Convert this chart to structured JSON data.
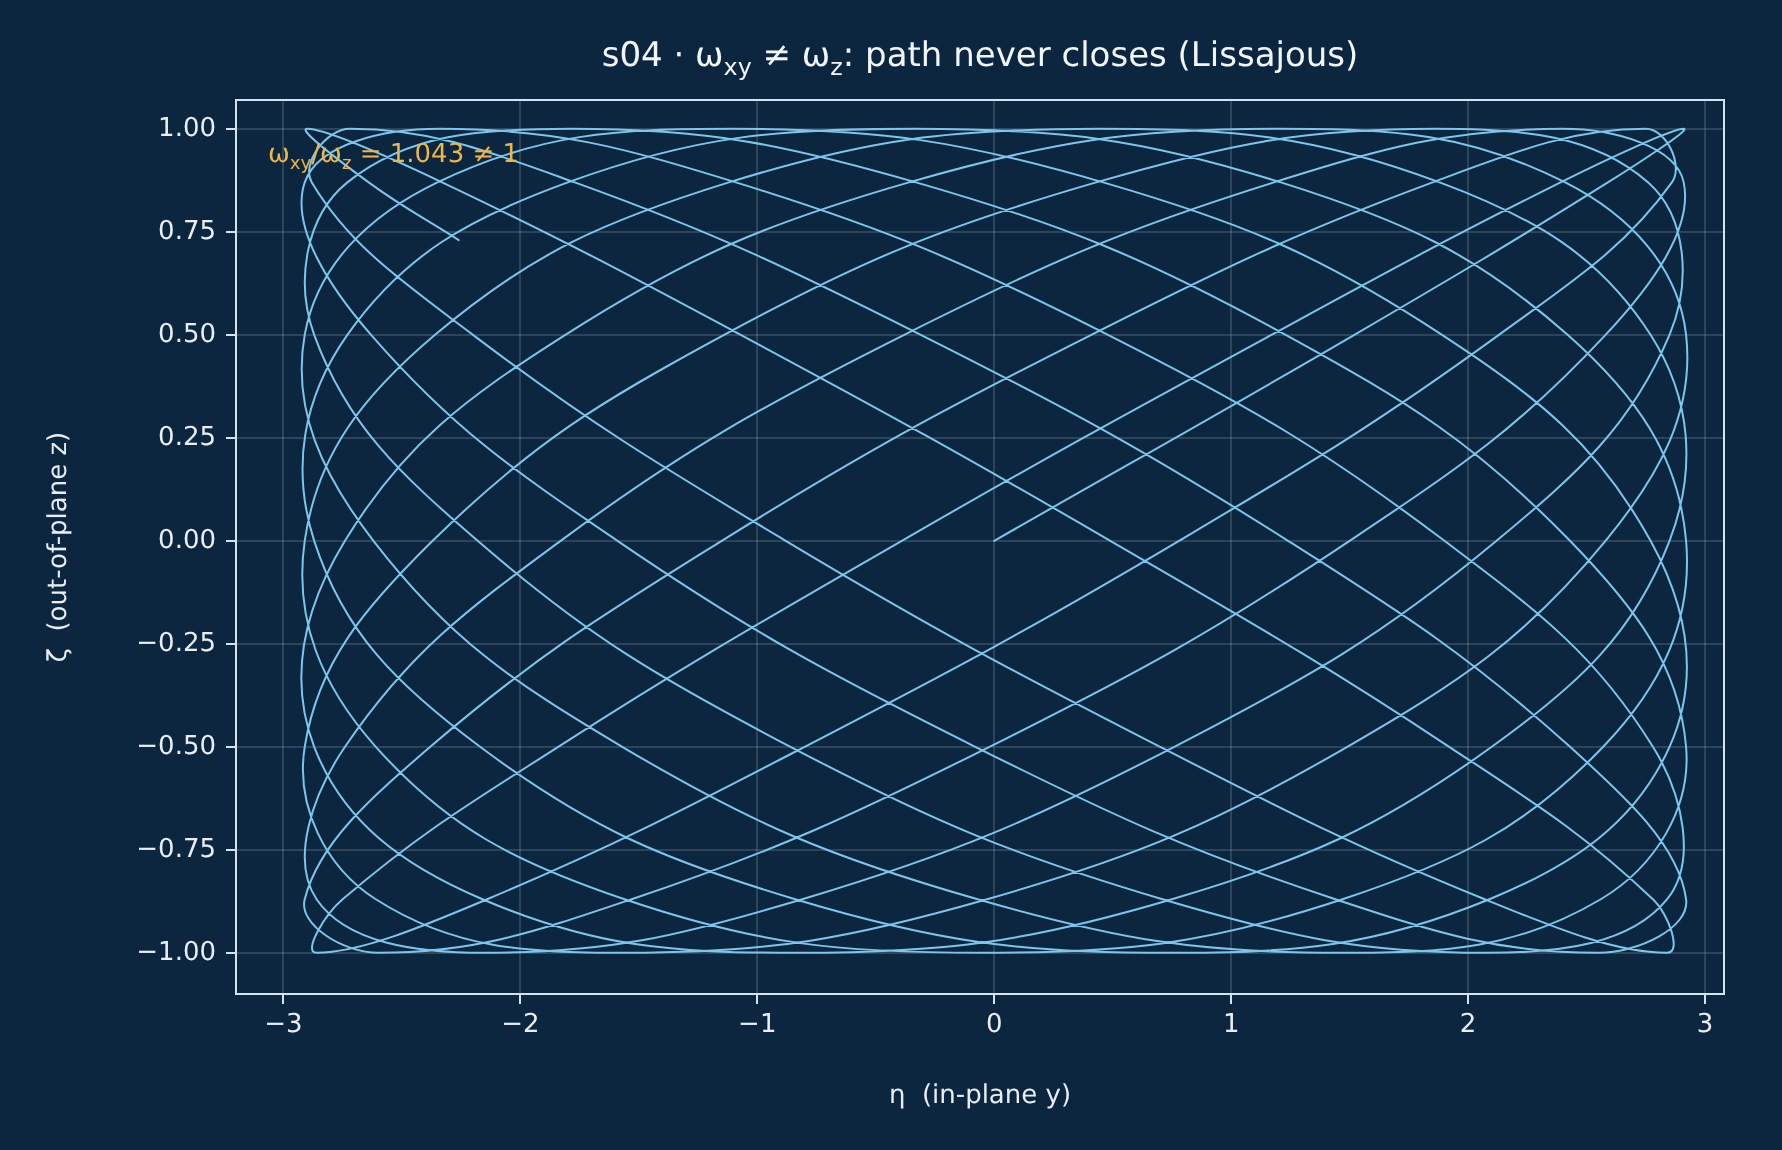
{
  "chart_data": {
    "type": "line",
    "title": "s04 · ω$_{xy}$ ≠ ω$_{z}$: path never closes (Lissajous)",
    "xlabel": "η  (in-plane y)",
    "ylabel": "ζ  (out-of-plane z)",
    "annotations": [
      "ω$_{xy}$/ω$_{z}$ = 1.043 ≠ 1"
    ],
    "x": [
      0,
      1.52,
      2.59,
      2.91,
      2.39,
      1.17,
      -0.39,
      -1.84,
      -2.75,
      -2.86,
      -2.14,
      -0.8,
      0.78,
      2.13,
      2.86,
      2.75,
      1.85,
      0.41,
      -1.15,
      -2.38,
      -2.91,
      -2.6,
      -1.53,
      -0.02,
      1.5,
      2.58,
      2.91,
      2.4,
      1.18,
      -0.38,
      -1.83,
      -2.74,
      -2.86,
      -2.15,
      -0.81,
      0.76,
      2.12,
      2.85,
      2.76,
      1.86,
      0.43,
      -1.14,
      -2.37,
      -2.91,
      -2.61,
      -1.55,
      -0.03,
      1.49,
      2.58,
      2.92,
      2.41,
      1.2,
      -0.36,
      -1.81,
      -2.74,
      -2.87,
      -2.16,
      -0.83,
      0.75,
      2.1,
      2.85,
      2.77,
      1.88,
      0.44,
      -1.12,
      -2.36,
      -2.91,
      -2.61,
      -1.56,
      -0.05,
      1.47,
      2.57,
      2.92,
      2.42,
      1.21,
      -0.34,
      -1.8,
      -2.73,
      -2.87,
      -2.17,
      -0.84,
      0.73,
      2.09,
      2.85,
      2.77,
      1.89,
      0.46,
      -1.1,
      -2.35,
      -2.91,
      -2.62,
      -1.57,
      -0.07,
      1.46,
      2.56,
      2.92,
      2.43,
      1.23,
      -0.33,
      -1.79,
      -2.73,
      -2.87,
      -2.18,
      -0.86,
      0.71,
      2.08,
      2.84,
      2.78,
      1.9,
      0.48,
      -1.09,
      -2.34,
      -2.91,
      -2.63,
      -1.59,
      -0.08,
      1.44,
      2.55,
      2.92,
      2.43,
      1.24,
      -0.31,
      -1.77,
      -2.72,
      -2.88,
      -2.2,
      -0.88,
      0.7,
      2.07,
      2.84,
      2.78,
      1.92,
      0.49,
      -1.07,
      -2.33,
      -2.9,
      -2.64,
      -2.26
    ],
    "values": [
      0,
      0.5,
      0.87,
      1,
      0.87,
      0.5,
      0,
      -0.5,
      -0.87,
      -1,
      -0.87,
      -0.5,
      0,
      0.5,
      0.87,
      1,
      0.87,
      0.5,
      0,
      -0.5,
      -0.87,
      -1,
      -0.87,
      -0.5,
      0,
      0.5,
      0.87,
      1,
      0.87,
      0.5,
      0,
      -0.5,
      -0.87,
      -1,
      -0.87,
      -0.5,
      0,
      0.5,
      0.87,
      1,
      0.87,
      0.5,
      0,
      -0.5,
      -0.87,
      -1,
      -0.87,
      -0.5,
      0,
      0.5,
      0.87,
      1,
      0.87,
      0.5,
      0,
      -0.5,
      -0.87,
      -1,
      -0.87,
      -0.5,
      0,
      0.5,
      0.87,
      1,
      0.87,
      0.5,
      0,
      -0.5,
      -0.87,
      -1,
      -0.87,
      -0.5,
      0,
      0.5,
      0.87,
      1,
      0.87,
      0.5,
      0,
      -0.5,
      -0.87,
      -1,
      -0.87,
      -0.5,
      0,
      0.5,
      0.87,
      1,
      0.87,
      0.5,
      0,
      -0.5,
      -0.87,
      -1,
      -0.87,
      -0.5,
      0,
      0.5,
      0.87,
      1,
      0.87,
      0.5,
      0,
      -0.5,
      -0.87,
      -1,
      -0.87,
      -0.5,
      0,
      0.5,
      0.87,
      1,
      0.87,
      0.5,
      0,
      -0.5,
      -0.87,
      -1,
      -0.87,
      -0.5,
      0,
      0.5,
      0.87,
      1,
      0.87,
      0.5,
      0,
      -0.5,
      -0.87,
      -1,
      -0.87,
      -0.5,
      0,
      0.5,
      0.87,
      1,
      0.87,
      0.73
    ],
    "color": "#7cc5ec",
    "xlim": [
      -3.2,
      3.08
    ],
    "ylim": [
      -1.1,
      1.07
    ],
    "xticks": [
      {
        "value": -3,
        "label": "−3"
      },
      {
        "value": -2,
        "label": "−2"
      },
      {
        "value": -1,
        "label": "−1"
      },
      0,
      1,
      2,
      3
    ],
    "yticks": [
      {
        "value": -1,
        "label": "−1.00"
      },
      {
        "value": -0.75,
        "label": "−0.75"
      },
      {
        "value": -0.5,
        "label": "−0.50"
      },
      {
        "value": -0.25,
        "label": "−0.25"
      },
      {
        "value": 0,
        "label": "0.00"
      },
      0.25,
      {
        "value": 0.5,
        "label": "0.50"
      },
      0.75,
      {
        "value": 1,
        "label": "1.00"
      }
    ],
    "grid": true,
    "marker": "none",
    "line_style": "solid"
  }
}
